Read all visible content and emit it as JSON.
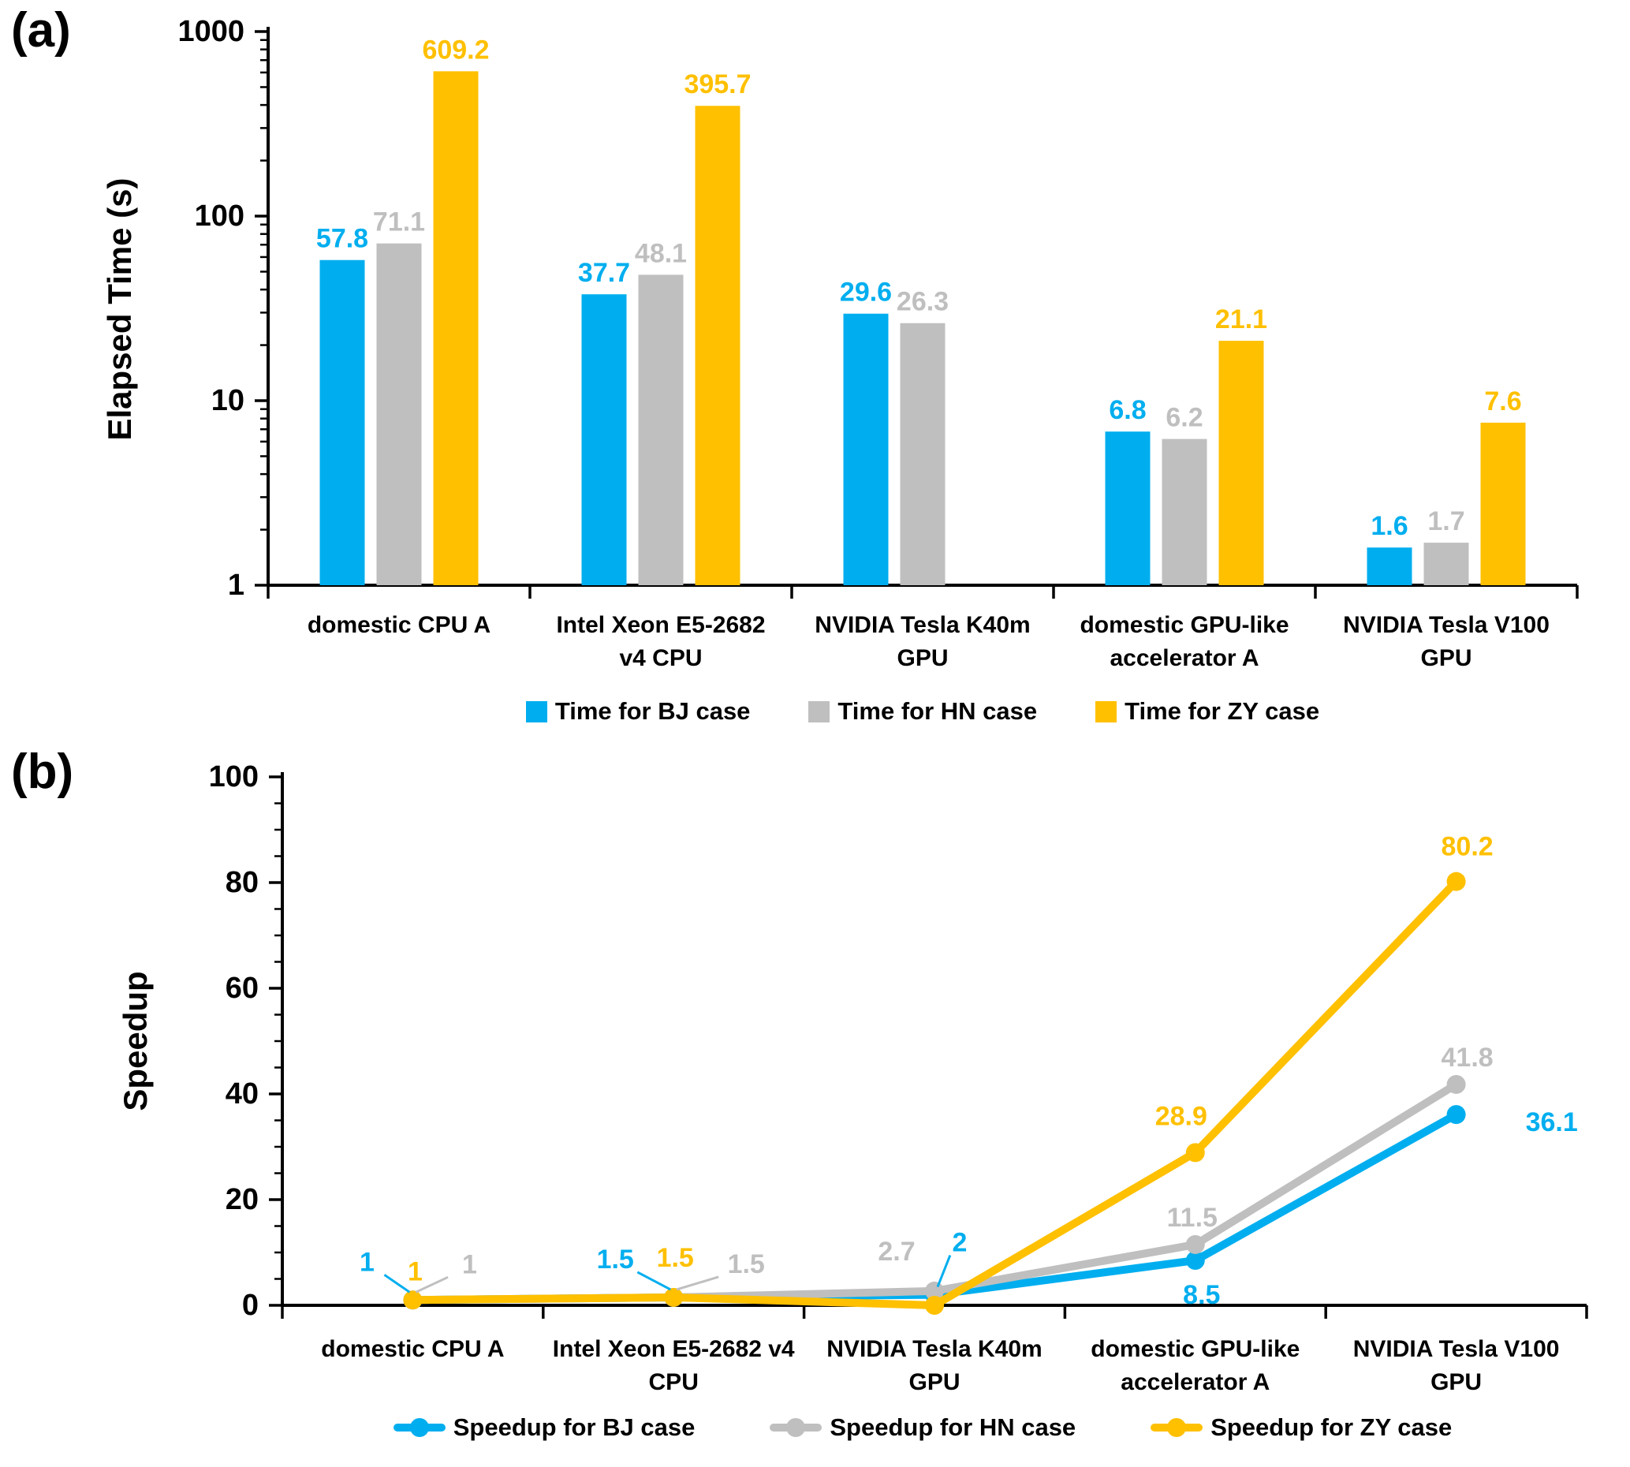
{
  "panel_a": {
    "label": "(a)",
    "y_axis_title": "Elapsed Time (s)"
  },
  "panel_b": {
    "label": "(b)",
    "y_axis_title": "Speedup"
  },
  "colors": {
    "bj_blue": "#00AEEF",
    "hn_gray": "#BFBFBF",
    "zy_gold": "#FFC000",
    "axis_black": "#000000"
  },
  "chart_data": [
    {
      "id": "elapsed-time-bars",
      "type": "bar",
      "y_scale": "log",
      "title": "",
      "xlabel": "",
      "ylabel": "Elapsed Time (s)",
      "ylim": [
        1,
        1000
      ],
      "y_ticks": [
        "1",
        "10",
        "100",
        "1000"
      ],
      "grid": false,
      "legend_position": "bottom",
      "categories": [
        "domestic CPU A",
        "Intel Xeon E5-2682\nv4 CPU",
        "NVIDIA Tesla K40m\nGPU",
        "domestic GPU-like\naccelerator A",
        "NVIDIA Tesla V100\nGPU"
      ],
      "series": [
        {
          "name": "Time for BJ case",
          "color": "#00AEEF",
          "values": [
            57.8,
            37.7,
            29.6,
            6.8,
            1.6
          ],
          "labels": [
            "57.8",
            "37.7",
            "29.6",
            "6.8",
            "1.6"
          ]
        },
        {
          "name": "Time for HN case",
          "color": "#BFBFBF",
          "values": [
            71.1,
            48.1,
            26.3,
            6.2,
            1.7
          ],
          "labels": [
            "71.1",
            "48.1",
            "26.3",
            "6.2",
            "1.7"
          ]
        },
        {
          "name": "Time for ZY case",
          "color": "#FFC000",
          "values": [
            609.2,
            395.7,
            null,
            21.1,
            7.6
          ],
          "labels": [
            "609.2",
            "395.7",
            "",
            "21.1",
            "7.6"
          ]
        }
      ]
    },
    {
      "id": "speedup-lines",
      "type": "line",
      "y_scale": "linear",
      "title": "",
      "xlabel": "",
      "ylabel": "Speedup",
      "ylim": [
        0,
        100
      ],
      "y_ticks": [
        "0",
        "20",
        "40",
        "60",
        "80",
        "100"
      ],
      "minor_tick_step": 5,
      "grid": false,
      "legend_position": "bottom",
      "categories": [
        "domestic CPU A",
        "Intel Xeon E5-2682 v4\nCPU",
        "NVIDIA Tesla K40m\nGPU",
        "domestic GPU-like\naccelerator A",
        "NVIDIA Tesla V100\nGPU"
      ],
      "series": [
        {
          "name": "Speedup for BJ case",
          "color": "#00AEEF",
          "values": [
            1,
            1.5,
            2,
            8.5,
            36.1
          ],
          "labels": [
            "1",
            "1.5",
            "2",
            "8.5",
            "36.1"
          ]
        },
        {
          "name": "Speedup for HN case",
          "color": "#BFBFBF",
          "values": [
            1,
            1.5,
            2.7,
            11.5,
            41.8
          ],
          "labels": [
            "1",
            "1.5",
            "2.7",
            "11.5",
            "41.8"
          ]
        },
        {
          "name": "Speedup for ZY case",
          "color": "#FFC000",
          "values": [
            1,
            1.5,
            0,
            28.9,
            80.2
          ],
          "labels": [
            "1",
            "1.5",
            "",
            "28.9",
            "80.2"
          ]
        }
      ]
    }
  ]
}
